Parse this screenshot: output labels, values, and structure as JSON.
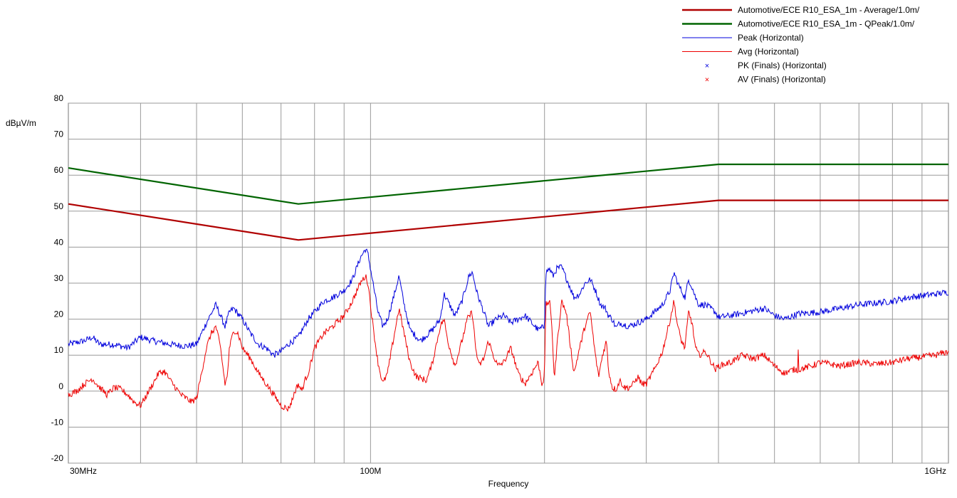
{
  "chart_data": {
    "type": "line",
    "title": "",
    "xlabel": "Frequency",
    "ylabel": "dBµV/m",
    "x_scale": "log",
    "xlim": [
      30,
      1000
    ],
    "ylim": [
      -20,
      80
    ],
    "grid": true,
    "legend_position": "top-right",
    "x_ticks": [
      {
        "value": 30,
        "label": "30MHz"
      },
      {
        "value": 100,
        "label": "100M"
      },
      {
        "value": 1000,
        "label": "1GHz"
      }
    ],
    "x_gridlines": [
      40,
      50,
      60,
      70,
      80,
      90,
      100,
      200,
      300,
      400,
      500,
      600,
      700,
      800,
      900
    ],
    "y_ticks": [
      80,
      70,
      60,
      50,
      40,
      30,
      20,
      10,
      0,
      -10,
      -20
    ],
    "series": [
      {
        "name": "Automotive/ECE R10_ESA_1m  - Average/1.0m/",
        "color": "#b00000",
        "style": "limit",
        "points": [
          [
            30,
            52
          ],
          [
            75,
            42
          ],
          [
            400,
            53
          ],
          [
            1000,
            53
          ]
        ]
      },
      {
        "name": "Automotive/ECE R10_ESA_1m  - QPeak/1.0m/",
        "color": "#006400",
        "style": "limit",
        "points": [
          [
            30,
            62
          ],
          [
            75,
            52
          ],
          [
            400,
            63
          ],
          [
            1000,
            63
          ]
        ]
      },
      {
        "name": "Peak (Horizontal)",
        "color": "#0000dd",
        "style": "trace",
        "points": [
          [
            30,
            13
          ],
          [
            32,
            14
          ],
          [
            33,
            15
          ],
          [
            34,
            13
          ],
          [
            36,
            13
          ],
          [
            38,
            12
          ],
          [
            40,
            15
          ],
          [
            42,
            14
          ],
          [
            45,
            13
          ],
          [
            48,
            12.5
          ],
          [
            50,
            13
          ],
          [
            52,
            19
          ],
          [
            54,
            24
          ],
          [
            55,
            21
          ],
          [
            56,
            18
          ],
          [
            57,
            22
          ],
          [
            58,
            23
          ],
          [
            60,
            20
          ],
          [
            62,
            16
          ],
          [
            64,
            13
          ],
          [
            66,
            12
          ],
          [
            68,
            10
          ],
          [
            70,
            11
          ],
          [
            72,
            13
          ],
          [
            75,
            15
          ],
          [
            78,
            20
          ],
          [
            80,
            22
          ],
          [
            83,
            25
          ],
          [
            86,
            26
          ],
          [
            90,
            28
          ],
          [
            93,
            31
          ],
          [
            96,
            37
          ],
          [
            98,
            39.5
          ],
          [
            99,
            38
          ],
          [
            101,
            30
          ],
          [
            103,
            22
          ],
          [
            105,
            18
          ],
          [
            107,
            20
          ],
          [
            110,
            27
          ],
          [
            112,
            32
          ],
          [
            114,
            25
          ],
          [
            117,
            17
          ],
          [
            122,
            14
          ],
          [
            128,
            17
          ],
          [
            132,
            20
          ],
          [
            134,
            27
          ],
          [
            136,
            25
          ],
          [
            140,
            21
          ],
          [
            144,
            25
          ],
          [
            148,
            32
          ],
          [
            150,
            33
          ],
          [
            153,
            27
          ],
          [
            157,
            22
          ],
          [
            160,
            18
          ],
          [
            165,
            20
          ],
          [
            170,
            21
          ],
          [
            175,
            19
          ],
          [
            180,
            20
          ],
          [
            185,
            21
          ],
          [
            190,
            19
          ],
          [
            195,
            17
          ],
          [
            200,
            18
          ],
          [
            201,
            33
          ],
          [
            204,
            34
          ],
          [
            207,
            32
          ],
          [
            210,
            34
          ],
          [
            214,
            34.5
          ],
          [
            220,
            30
          ],
          [
            225,
            26
          ],
          [
            230,
            27
          ],
          [
            235,
            30
          ],
          [
            240,
            31
          ],
          [
            245,
            28
          ],
          [
            250,
            24
          ],
          [
            255,
            23
          ],
          [
            258,
            21
          ],
          [
            262,
            20
          ],
          [
            266,
            17.5
          ],
          [
            270,
            19
          ],
          [
            280,
            18
          ],
          [
            290,
            19
          ],
          [
            300,
            20
          ],
          [
            310,
            22
          ],
          [
            320,
            24
          ],
          [
            330,
            28
          ],
          [
            335,
            33
          ],
          [
            340,
            30
          ],
          [
            345,
            28
          ],
          [
            350,
            26
          ],
          [
            355,
            31
          ],
          [
            360,
            29
          ],
          [
            365,
            26
          ],
          [
            370,
            24
          ],
          [
            380,
            24
          ],
          [
            395,
            22
          ],
          [
            400,
            20.5
          ],
          [
            420,
            21
          ],
          [
            450,
            22
          ],
          [
            480,
            23
          ],
          [
            500,
            21
          ],
          [
            520,
            20
          ],
          [
            550,
            21.5
          ],
          [
            600,
            22
          ],
          [
            650,
            23
          ],
          [
            700,
            24
          ],
          [
            750,
            24.5
          ],
          [
            800,
            25
          ],
          [
            850,
            26
          ],
          [
            900,
            26.5
          ],
          [
            950,
            27
          ],
          [
            1000,
            27.5
          ]
        ]
      },
      {
        "name": "Avg (Horizontal)",
        "color": "#ee0000",
        "style": "trace",
        "points": [
          [
            30,
            -1
          ],
          [
            31,
            0
          ],
          [
            32,
            2
          ],
          [
            33,
            3.5
          ],
          [
            34,
            1
          ],
          [
            35,
            -1
          ],
          [
            36,
            1
          ],
          [
            37,
            0.5
          ],
          [
            38,
            -1
          ],
          [
            39,
            -3
          ],
          [
            40,
            -4
          ],
          [
            41,
            -1
          ],
          [
            42,
            2
          ],
          [
            43,
            5
          ],
          [
            44,
            5.5
          ],
          [
            45,
            3
          ],
          [
            47,
            -1
          ],
          [
            49,
            -3
          ],
          [
            50,
            -2
          ],
          [
            51,
            5
          ],
          [
            52,
            12
          ],
          [
            53,
            16
          ],
          [
            54,
            18
          ],
          [
            55,
            12
          ],
          [
            56,
            2
          ],
          [
            56.5,
            4
          ],
          [
            57,
            12
          ],
          [
            58,
            17
          ],
          [
            59,
            16
          ],
          [
            60,
            12
          ],
          [
            62,
            9
          ],
          [
            64,
            5
          ],
          [
            66,
            2
          ],
          [
            68,
            -1
          ],
          [
            70,
            -4
          ],
          [
            72,
            -5
          ],
          [
            73,
            -3
          ],
          [
            74,
            0
          ],
          [
            75,
            2
          ],
          [
            76,
            0
          ],
          [
            77,
            3
          ],
          [
            78,
            5
          ],
          [
            80,
            12
          ],
          [
            83,
            16
          ],
          [
            86,
            18
          ],
          [
            90,
            21
          ],
          [
            93,
            25
          ],
          [
            96,
            30
          ],
          [
            98,
            32
          ],
          [
            99,
            30
          ],
          [
            101,
            18
          ],
          [
            103,
            8
          ],
          [
            105,
            2
          ],
          [
            107,
            5
          ],
          [
            110,
            16
          ],
          [
            112,
            23
          ],
          [
            114,
            17
          ],
          [
            117,
            8
          ],
          [
            120,
            4
          ],
          [
            125,
            3
          ],
          [
            128,
            8
          ],
          [
            132,
            18
          ],
          [
            134,
            20
          ],
          [
            136,
            14
          ],
          [
            140,
            7
          ],
          [
            144,
            14
          ],
          [
            147,
            20
          ],
          [
            150,
            22
          ],
          [
            152,
            12
          ],
          [
            154,
            7
          ],
          [
            157,
            9
          ],
          [
            160,
            14
          ],
          [
            163,
            10
          ],
          [
            166,
            7
          ],
          [
            170,
            8
          ],
          [
            175,
            12
          ],
          [
            180,
            5
          ],
          [
            185,
            2
          ],
          [
            190,
            5
          ],
          [
            195,
            8
          ],
          [
            198,
            2
          ],
          [
            200,
            4
          ],
          [
            201,
            24
          ],
          [
            204,
            25
          ],
          [
            206,
            18
          ],
          [
            208,
            3
          ],
          [
            210,
            12
          ],
          [
            214,
            25
          ],
          [
            218,
            22
          ],
          [
            222,
            12
          ],
          [
            225,
            5
          ],
          [
            230,
            12
          ],
          [
            235,
            18
          ],
          [
            240,
            22
          ],
          [
            244,
            12
          ],
          [
            248,
            4
          ],
          [
            252,
            10
          ],
          [
            256,
            14
          ],
          [
            258,
            6
          ],
          [
            262,
            1
          ],
          [
            266,
            0.5
          ],
          [
            270,
            3
          ],
          [
            275,
            1
          ],
          [
            280,
            1
          ],
          [
            285,
            2
          ],
          [
            290,
            4
          ],
          [
            295,
            2
          ],
          [
            300,
            2
          ],
          [
            310,
            6
          ],
          [
            320,
            11
          ],
          [
            330,
            20
          ],
          [
            335,
            25
          ],
          [
            340,
            18
          ],
          [
            345,
            14
          ],
          [
            350,
            12
          ],
          [
            355,
            22
          ],
          [
            360,
            19
          ],
          [
            365,
            12
          ],
          [
            370,
            10
          ],
          [
            380,
            11
          ],
          [
            395,
            6
          ],
          [
            400,
            7
          ],
          [
            420,
            8
          ],
          [
            440,
            10
          ],
          [
            460,
            9
          ],
          [
            480,
            10
          ],
          [
            500,
            7
          ],
          [
            520,
            5
          ],
          [
            540,
            6
          ],
          [
            549,
            6
          ],
          [
            550,
            15
          ],
          [
            551,
            6
          ],
          [
            580,
            7
          ],
          [
            600,
            8
          ],
          [
            650,
            7
          ],
          [
            700,
            8
          ],
          [
            750,
            7.5
          ],
          [
            800,
            8
          ],
          [
            850,
            9
          ],
          [
            900,
            9.5
          ],
          [
            950,
            10
          ],
          [
            1000,
            11
          ]
        ]
      },
      {
        "name": "PK (Finals) (Horizontal)",
        "color": "#0000dd",
        "style": "marker",
        "points": []
      },
      {
        "name": "AV (Finals) (Horizontal)",
        "color": "#ee0000",
        "style": "marker",
        "points": []
      }
    ]
  }
}
